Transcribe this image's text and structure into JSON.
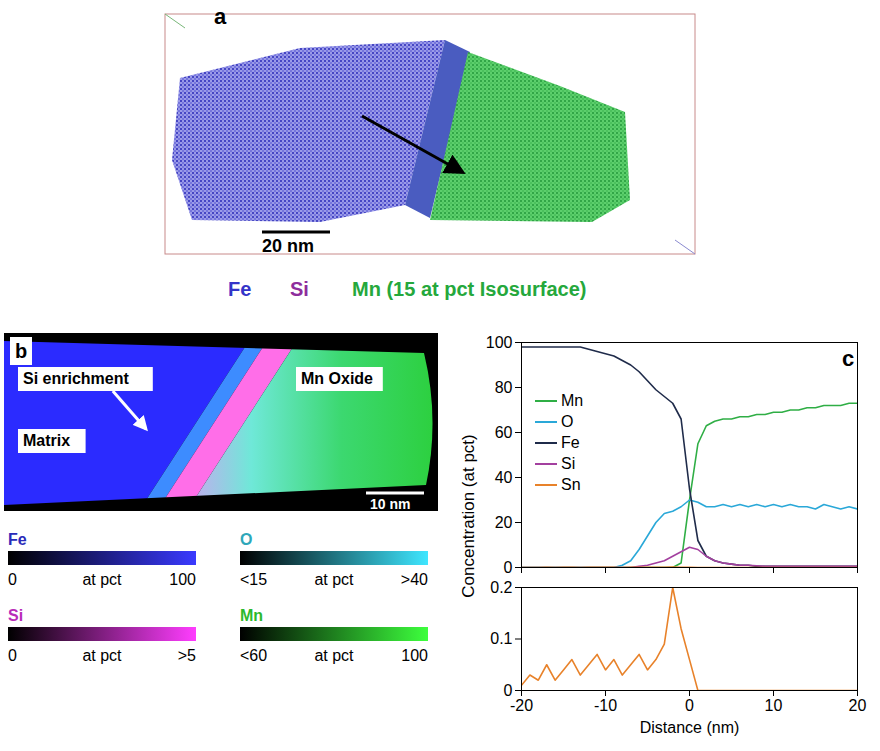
{
  "figure": {
    "panel_a": {
      "panel": "a",
      "scale_bar": "20 nm",
      "legend": [
        {
          "name": "Fe",
          "color": "#3434c8"
        },
        {
          "name": "Si",
          "color": "#8e2d9c"
        },
        {
          "name": "Mn (15 at pct Isosurface)",
          "color": "#25a83c"
        }
      ]
    },
    "panel_b": {
      "panel": "b",
      "annotations": [
        "Si enrichment",
        "Mn Oxide",
        "Matrix"
      ],
      "scale_bar": "10 nm",
      "color_bars": [
        {
          "name": "Fe",
          "color": "#3a3aff",
          "unit": "at pct",
          "range": [
            0,
            100
          ],
          "ticks": [
            0,
            100
          ]
        },
        {
          "name": "O",
          "color": "#3fe6ff",
          "unit": "at pct",
          "range": [
            15,
            40
          ],
          "ticks": [
            {
              "value": 15,
              "label": "<15"
            },
            {
              "value": 40,
              "label": ">40"
            }
          ]
        },
        {
          "name": "Si",
          "color": "#ff3dff",
          "unit": "at pct",
          "range": [
            0,
            5
          ],
          "ticks": [
            0,
            {
              "value": 5,
              "label": ">5"
            }
          ]
        },
        {
          "name": "Mn",
          "color": "#3dff3d",
          "unit": "at pct",
          "range": [
            60,
            100
          ],
          "ticks": [
            {
              "value": 60,
              "label": "<60"
            },
            100
          ]
        }
      ]
    }
  },
  "chart_data": [
    {
      "type": "line",
      "panel": "c",
      "y_label": "Concentration (at pct)",
      "legend": "left",
      "tick_labels": "y",
      "x": [
        -20,
        -19,
        -18,
        -17,
        -16,
        -15,
        -14,
        -13,
        -12,
        -11,
        -10,
        -9,
        -8,
        -7,
        -6,
        -5,
        -4,
        -3,
        -2,
        -1,
        0,
        1,
        2,
        3,
        4,
        5,
        6,
        7,
        8,
        9,
        10,
        11,
        12,
        13,
        14,
        15,
        16,
        17,
        18,
        19,
        20
      ],
      "xlim": [
        -20,
        20
      ],
      "xticks": [
        -20,
        -10,
        0,
        10,
        20
      ],
      "ylim": [
        0,
        100
      ],
      "yticks": [
        0,
        20,
        40,
        60,
        80,
        100
      ],
      "series": [
        {
          "name": "Mn",
          "color": "#2fae45",
          "values": [
            0,
            0,
            0,
            0,
            0,
            0,
            0,
            0,
            0,
            0,
            0,
            0,
            0,
            0,
            0,
            0,
            0,
            0,
            0,
            2,
            30,
            55,
            63,
            65,
            66,
            66,
            67,
            67,
            68,
            68,
            69,
            69,
            70,
            70,
            71,
            71,
            72,
            72,
            72,
            73,
            73
          ]
        },
        {
          "name": "O",
          "color": "#2aa8d8",
          "values": [
            0,
            0,
            0,
            0,
            0,
            0,
            0,
            0,
            0,
            0,
            0,
            0,
            1,
            3,
            8,
            14,
            20,
            24,
            25,
            27,
            30,
            29,
            27,
            27,
            28,
            27,
            28,
            27,
            28,
            27,
            28,
            27,
            28,
            27,
            27,
            26,
            28,
            27,
            26,
            27,
            26
          ]
        },
        {
          "name": "Fe",
          "color": "#1f2b4a",
          "values": [
            98,
            98,
            98,
            98,
            98,
            98,
            98,
            98,
            97,
            96,
            95,
            94,
            92,
            90,
            87,
            83,
            79,
            76,
            73,
            66,
            35,
            12,
            5,
            3,
            2,
            1.5,
            1,
            1,
            0.5,
            0.5,
            0.5,
            0.5,
            0.5,
            0.5,
            0.5,
            0.5,
            0.5,
            0.5,
            0.5,
            0.5,
            0.5
          ]
        },
        {
          "name": "Si",
          "color": "#a3409f",
          "values": [
            0,
            0,
            0,
            0,
            0,
            0,
            0,
            0,
            0,
            0,
            0,
            0,
            0,
            0,
            0.5,
            1,
            2,
            3,
            5,
            7,
            9,
            8,
            5,
            3,
            2,
            1.5,
            1,
            1,
            0.8,
            0.5,
            0.5,
            0.5,
            0.5,
            0.5,
            0.5,
            0.5,
            0.5,
            0.5,
            0.5,
            0.5,
            0.5
          ]
        },
        {
          "name": "Sn",
          "color": "#e8822a",
          "values": [
            0.01,
            0.03,
            0.02,
            0.05,
            0.02,
            0.04,
            0.06,
            0.03,
            0.05,
            0.07,
            0.04,
            0.06,
            0.03,
            0.05,
            0.07,
            0.04,
            0.06,
            0.09,
            0.2,
            0.12,
            0.06,
            0,
            0,
            0,
            0,
            0,
            0,
            0,
            0,
            0,
            0,
            0,
            0,
            0,
            0,
            0,
            0,
            0,
            0,
            0,
            0
          ]
        }
      ]
    },
    {
      "type": "line",
      "x_label": "Distance (nm)",
      "x": [
        -20,
        -19,
        -18,
        -17,
        -16,
        -15,
        -14,
        -13,
        -12,
        -11,
        -10,
        -9,
        -8,
        -7,
        -6,
        -5,
        -4,
        -3,
        -2,
        -1,
        0,
        1,
        2,
        3,
        4,
        5,
        6,
        7,
        8,
        9,
        10,
        11,
        12,
        13,
        14,
        15,
        16,
        17,
        18,
        19,
        20
      ],
      "xlim": [
        -20,
        20
      ],
      "xticks": [
        -20,
        -10,
        0,
        10,
        20
      ],
      "ylim": [
        0,
        0.2
      ],
      "yticks": [
        0,
        0.1,
        0.2
      ],
      "series": [
        {
          "name": "Sn",
          "color": "#e8822a",
          "values": [
            0.01,
            0.03,
            0.02,
            0.05,
            0.02,
            0.04,
            0.06,
            0.03,
            0.05,
            0.07,
            0.04,
            0.06,
            0.03,
            0.05,
            0.07,
            0.04,
            0.06,
            0.09,
            0.2,
            0.12,
            0.06,
            0,
            0,
            0,
            0,
            0,
            0,
            0,
            0,
            0,
            0,
            0,
            0,
            0,
            0,
            0,
            0,
            0,
            0,
            0,
            0
          ]
        }
      ]
    }
  ]
}
